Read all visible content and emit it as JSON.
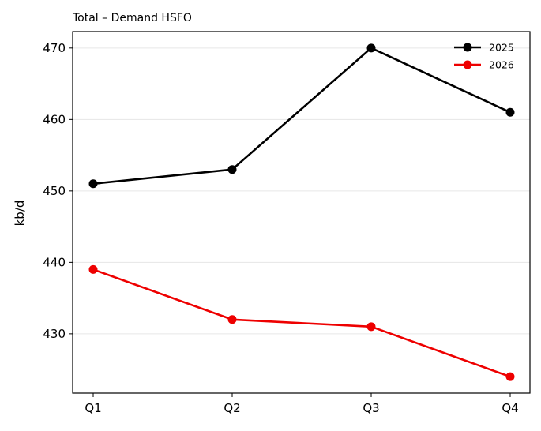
{
  "chart_data": {
    "type": "line",
    "title": "Total – Demand HSFO",
    "ylabel": "kb/d",
    "xlabel": "",
    "categories": [
      "Q1",
      "Q2",
      "Q3",
      "Q4"
    ],
    "ylim": [
      421.7,
      472.3
    ],
    "yticks": [
      430,
      440,
      450,
      460,
      470
    ],
    "grid": "horizontal",
    "legend_position": "top-right",
    "series": [
      {
        "name": "2025",
        "color": "#000000",
        "values": [
          451,
          453,
          470,
          461
        ]
      },
      {
        "name": "2026",
        "color": "#ee0000",
        "values": [
          439,
          432,
          431,
          424
        ]
      }
    ]
  }
}
